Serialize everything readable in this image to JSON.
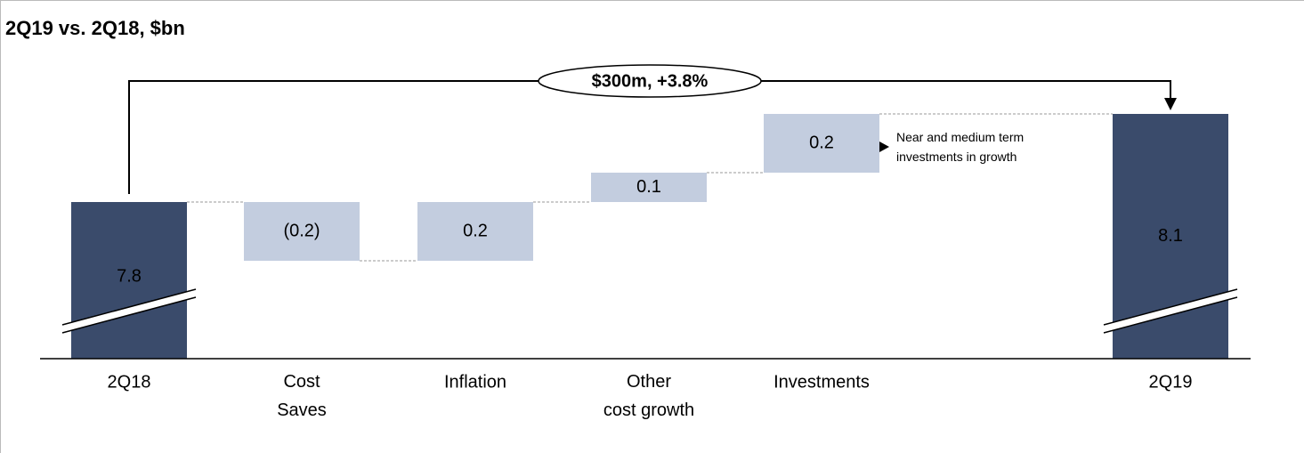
{
  "chart_data": {
    "type": "waterfall",
    "title": "2Q19 vs. 2Q18, $bn",
    "categories": [
      "2Q18",
      "Cost\nSaves",
      "Inflation",
      "Other\ncost growth",
      "Investments",
      "2Q19"
    ],
    "values": [
      7.8,
      -0.2,
      0.2,
      0.1,
      0.2,
      8.1
    ],
    "value_labels": [
      "7.8",
      "(0.2)",
      "0.2",
      "0.1",
      "0.2",
      "8.1"
    ],
    "colors": {
      "total": "#3a4b6b",
      "change": "#c3cddf"
    },
    "annotations": [
      "$300m, +3.8%",
      "Near and medium term\ninvestments in growth"
    ]
  }
}
